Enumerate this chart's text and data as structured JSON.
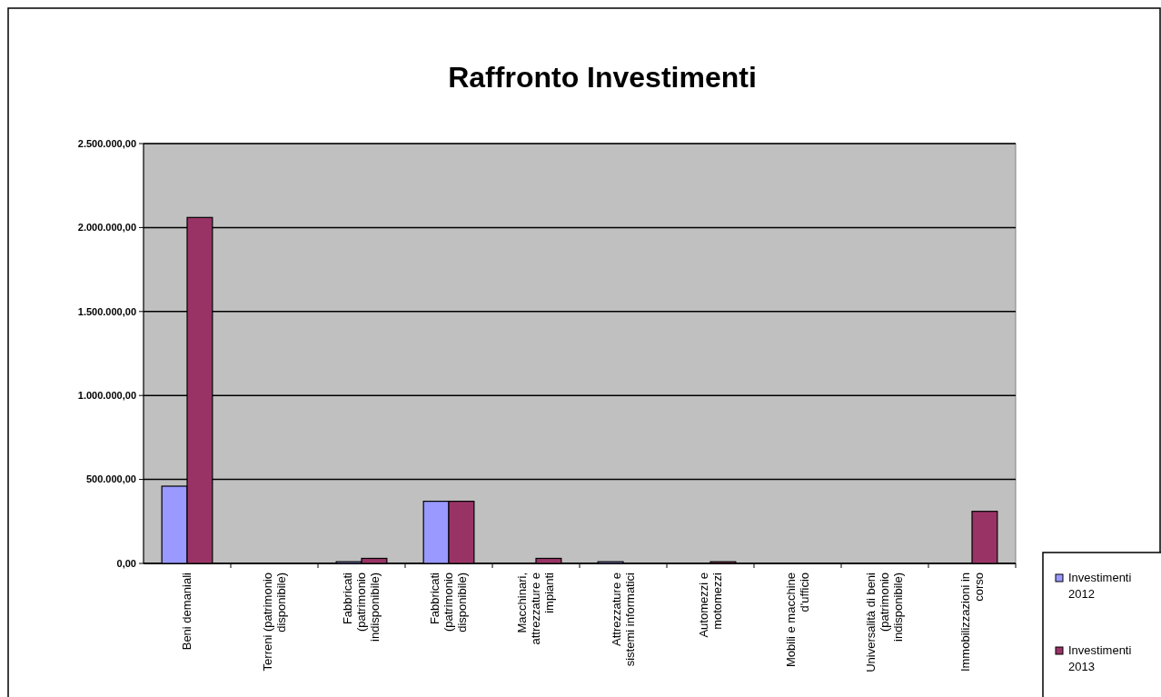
{
  "chart_data": {
    "type": "bar",
    "title": "Raffronto Investimenti",
    "categories": [
      "Beni demaniali",
      "Terreni (patrimonio disponibile)",
      "Fabbricati (patrimonio indisponibile)",
      "Fabbricati (patrimonio disponibile)",
      "Macchinari, attrezzature e impianti",
      "Attrezzature e sistemi informatici",
      "Automezzi e motomezzi",
      "Mobili e macchine d'ufficio",
      "Universalità di beni (patrimonio indisponibile)",
      "Immobilizzazioni in corso"
    ],
    "series": [
      {
        "name": "Investimenti 2012",
        "color": "#9999ff",
        "values": [
          460000,
          0,
          10000,
          370000,
          0,
          10000,
          0,
          0,
          0,
          0
        ]
      },
      {
        "name": "Investimenti 2013",
        "color": "#993366",
        "values": [
          2060000,
          0,
          30000,
          370000,
          30000,
          0,
          10000,
          0,
          0,
          310000
        ]
      }
    ],
    "ylim": [
      0,
      2500000
    ],
    "yticks": [
      {
        "value": 0,
        "label": "0,00"
      },
      {
        "value": 500000,
        "label": "500.000,00"
      },
      {
        "value": 1000000,
        "label": "1.000.000,00"
      },
      {
        "value": 1500000,
        "label": "1.500.000,00"
      },
      {
        "value": 2000000,
        "label": "2.000.000,00"
      },
      {
        "value": 2500000,
        "label": "2.500.000,00"
      }
    ],
    "grid": "y",
    "legend": "right"
  }
}
